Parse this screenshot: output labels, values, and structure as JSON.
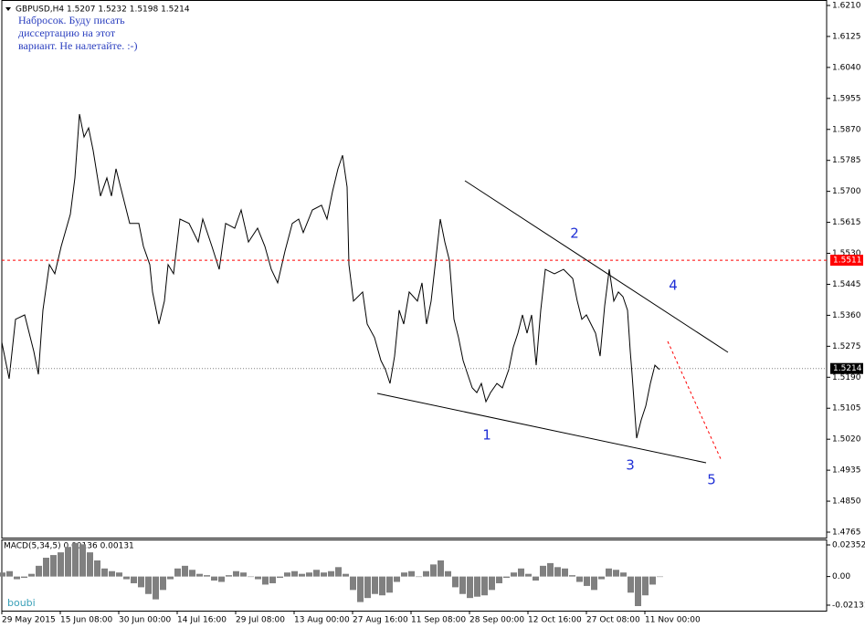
{
  "chart_data": [
    {
      "type": "line",
      "title": "GBPUSD,H4  1.5207 1.5232 1.5198 1.5214",
      "comment": [
        "Набросок. Буду писать",
        "диссертацию на этот",
        "вариант. Не налетайте. :-)"
      ],
      "x": [
        0,
        8,
        15,
        25,
        35,
        40,
        45,
        52,
        58,
        65,
        75,
        80,
        85,
        90,
        95,
        100,
        108,
        115,
        120,
        125,
        130,
        135,
        140,
        150,
        155,
        162,
        165,
        172,
        178,
        182,
        188,
        195,
        205,
        215,
        220,
        230,
        238,
        245,
        255,
        262,
        270,
        280,
        288,
        295,
        302,
        310,
        318,
        325,
        330,
        340,
        350,
        356,
        362,
        368,
        373,
        378,
        380,
        385,
        395,
        400,
        408,
        415,
        420,
        425,
        430,
        435,
        440,
        446,
        455,
        460,
        465,
        470,
        475,
        480,
        485,
        490,
        495,
        500,
        505,
        510,
        515,
        520,
        525,
        530,
        535,
        542,
        548,
        555,
        560,
        565,
        570,
        575,
        580,
        585,
        590,
        595,
        605,
        615,
        625,
        630,
        635,
        640,
        650,
        655,
        660,
        665,
        670,
        675,
        680,
        685,
        688,
        690,
        695,
        700,
        705,
        710,
        715,
        720
      ],
      "series": [
        {
          "color": "#000000",
          "values": [
            1.5286,
            1.5186,
            1.5349,
            1.5361,
            1.5261,
            1.5198,
            1.5374,
            1.5499,
            1.5474,
            1.5549,
            1.5637,
            1.5737,
            1.5912,
            1.5849,
            1.5874,
            1.5812,
            1.5687,
            1.5737,
            1.5687,
            1.5762,
            1.5712,
            1.5662,
            1.5612,
            1.5612,
            1.5549,
            1.5499,
            1.5424,
            1.5336,
            1.5399,
            1.5499,
            1.5474,
            1.5624,
            1.5612,
            1.5561,
            1.5624,
            1.5549,
            1.5486,
            1.5612,
            1.5599,
            1.5649,
            1.5561,
            1.5599,
            1.5549,
            1.5486,
            1.5449,
            1.5536,
            1.5612,
            1.5624,
            1.5587,
            1.5649,
            1.5662,
            1.5624,
            1.5699,
            1.5762,
            1.5799,
            1.5712,
            1.5499,
            1.5399,
            1.5424,
            1.5336,
            1.5299,
            1.5236,
            1.5211,
            1.5173,
            1.5248,
            1.5374,
            1.5336,
            1.5424,
            1.5399,
            1.5449,
            1.5336,
            1.5399,
            1.5511,
            1.5624,
            1.5561,
            1.5511,
            1.5349,
            1.5299,
            1.5236,
            1.5198,
            1.5161,
            1.5148,
            1.5173,
            1.5123,
            1.5148,
            1.5173,
            1.5161,
            1.5211,
            1.5273,
            1.5311,
            1.5361,
            1.5311,
            1.5361,
            1.5223,
            1.5374,
            1.5486,
            1.5474,
            1.5486,
            1.5461,
            1.5399,
            1.5349,
            1.5361,
            1.5311,
            1.5248,
            1.5386,
            1.5486,
            1.5399,
            1.5424,
            1.5411,
            1.5374,
            1.5261,
            1.5198,
            1.5023,
            1.5073,
            1.5111,
            1.5173,
            1.5223,
            1.5211
          ]
        }
      ],
      "xlim": [
        0,
        903
      ],
      "ylim": [
        1.475,
        1.6225
      ],
      "yticks": [
        {
          "value": 1.621,
          "label": "1.6210"
        },
        {
          "value": 1.6125,
          "label": "1.6125"
        },
        {
          "value": 1.604,
          "label": "1.6040"
        },
        {
          "value": 1.5955,
          "label": "1.5955"
        },
        {
          "value": 1.587,
          "label": "1.5870"
        },
        {
          "value": 1.5785,
          "label": "1.5785"
        },
        {
          "value": 1.57,
          "label": "1.5700"
        },
        {
          "value": 1.5615,
          "label": "1.5615"
        },
        {
          "value": 1.553,
          "label": "1.5530"
        },
        {
          "value": 1.5445,
          "label": "1.5445"
        },
        {
          "value": 1.536,
          "label": "1.5360"
        },
        {
          "value": 1.5275,
          "label": "1.5275"
        },
        {
          "value": 1.519,
          "label": "1.5190"
        },
        {
          "value": 1.5105,
          "label": "1.5105"
        },
        {
          "value": 1.502,
          "label": "1.5020"
        },
        {
          "value": 1.4935,
          "label": "1.4935"
        },
        {
          "value": 1.485,
          "label": "1.4850"
        },
        {
          "value": 1.4765,
          "label": "1.4765"
        }
      ],
      "hlines": [
        {
          "value": 1.5511,
          "color": "#ff0000"
        },
        {
          "value": 1.5214,
          "color": "#808080"
        }
      ],
      "wave_labels": [
        "1",
        "2",
        "3",
        "4",
        "5"
      ],
      "watermark": "boubi"
    },
    {
      "type": "bar",
      "title": "MACD(5,34,5) 0.00136 0.00131",
      "x": [
        0,
        8,
        16,
        24,
        32,
        40,
        48,
        56,
        64,
        72,
        80,
        88,
        96,
        104,
        112,
        120,
        128,
        136,
        144,
        152,
        160,
        168,
        176,
        184,
        192,
        200,
        208,
        216,
        224,
        232,
        240,
        248,
        256,
        264,
        272,
        280,
        288,
        296,
        304,
        312,
        320,
        328,
        336,
        344,
        352,
        360,
        368,
        376,
        384,
        392,
        400,
        408,
        416,
        424,
        432,
        440,
        448,
        456,
        464,
        472,
        480,
        488,
        496,
        504,
        512,
        520,
        528,
        536,
        544,
        552,
        560,
        568,
        576,
        584,
        592,
        600,
        608,
        616,
        624,
        632,
        640,
        648,
        656,
        664,
        672,
        680,
        688,
        696,
        704,
        712,
        720
      ],
      "values": [
        0.003,
        0.004,
        -0.002,
        -0.001,
        0.002,
        0.008,
        0.014,
        0.016,
        0.018,
        0.022,
        0.025,
        0.024,
        0.018,
        0.012,
        0.006,
        0.004,
        0.003,
        -0.002,
        -0.005,
        -0.008,
        -0.013,
        -0.017,
        -0.01,
        -0.002,
        0.006,
        0.008,
        0.005,
        0.002,
        0.001,
        -0.003,
        -0.004,
        0.001,
        0.004,
        0.003,
        0.0,
        -0.002,
        -0.006,
        -0.005,
        -0.001,
        0.003,
        0.004,
        0.002,
        0.003,
        0.005,
        0.003,
        0.004,
        0.007,
        0.002,
        -0.01,
        -0.019,
        -0.016,
        -0.013,
        -0.014,
        -0.012,
        -0.004,
        0.003,
        0.004,
        0.0,
        0.004,
        0.009,
        0.012,
        0.004,
        -0.008,
        -0.013,
        -0.016,
        -0.015,
        -0.014,
        -0.01,
        -0.005,
        -0.001,
        0.003,
        0.006,
        0.002,
        -0.003,
        0.008,
        0.01,
        0.007,
        0.006,
        0.001,
        -0.004,
        -0.007,
        -0.01,
        -0.002,
        0.006,
        0.005,
        0.003,
        -0.012,
        -0.022,
        -0.014,
        -0.006,
        0.0
      ],
      "color": "#808080",
      "xlim": [
        0,
        903
      ],
      "ylim": [
        -0.0254,
        0.0276
      ],
      "yticks": [
        0.02352,
        {
          "value": 0,
          "label": "0.00"
        },
        -0.02131
      ],
      "xticks": [
        {
          "value": 0,
          "label": "29 May 2015"
        },
        {
          "value": 64,
          "label": "15 Jun 08:00"
        },
        {
          "value": 128,
          "label": "30 Jun 00:00"
        },
        {
          "value": 192,
          "label": "14 Jul 16:00"
        },
        {
          "value": 256,
          "label": "29 Jul 08:00"
        },
        {
          "value": 320,
          "label": "13 Aug 00:00"
        },
        {
          "value": 384,
          "label": "27 Aug 16:00"
        },
        {
          "value": 448,
          "label": "11 Sep 08:00"
        },
        {
          "value": 512,
          "label": "28 Sep 00:00"
        },
        {
          "value": 576,
          "label": "12 Oct 16:00"
        },
        {
          "value": 640,
          "label": "27 Oct 08:00"
        },
        {
          "value": 704,
          "label": "11 Nov 00:00"
        }
      ]
    }
  ]
}
